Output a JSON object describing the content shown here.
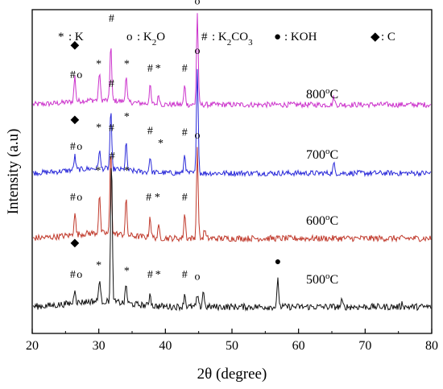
{
  "chart_data": {
    "type": "line",
    "xlabel": "2θ (degree)",
    "ylabel": "Intensity (a.u)",
    "xlim": [
      20,
      80
    ],
    "xticks": [
      "20",
      "30",
      "40",
      "50",
      "60",
      "70",
      "80"
    ],
    "grid": false,
    "legend_position": "top",
    "legend": [
      {
        "symbol": "*",
        "text": ": K"
      },
      {
        "symbol": "o",
        "text": ": K₂O"
      },
      {
        "symbol": "#",
        "text": ": K₂CO₃"
      },
      {
        "symbol": "●",
        "text": ": KOH"
      },
      {
        "symbol": "◆",
        "text": ": C"
      }
    ],
    "series": [
      {
        "name": "800°C",
        "label_main": "800",
        "label_sup": "o",
        "label_tail": "C",
        "color": "#cc33cc",
        "baseline": 0.0,
        "peaks": [
          [
            26.4,
            0.16
          ],
          [
            30.1,
            0.18
          ],
          [
            31.8,
            0.36
          ],
          [
            34.1,
            0.16
          ],
          [
            37.7,
            0.12
          ],
          [
            39.0,
            0.06
          ],
          [
            42.9,
            0.12
          ],
          [
            44.8,
            0.58
          ],
          [
            65.3,
            0.05
          ]
        ],
        "markers": [
          {
            "x": 26.4,
            "sym": "◆",
            "h": 0.38
          },
          {
            "x": 26.1,
            "sym": "#",
            "h": 0.19
          },
          {
            "x": 27.1,
            "sym": "o",
            "h": 0.19
          },
          {
            "x": 30.0,
            "sym": "*",
            "h": 0.26
          },
          {
            "x": 31.9,
            "sym": "#",
            "h": 0.55
          },
          {
            "x": 34.2,
            "sym": "*",
            "h": 0.26
          },
          {
            "x": 37.7,
            "sym": "#",
            "h": 0.23
          },
          {
            "x": 38.9,
            "sym": "*",
            "h": 0.23
          },
          {
            "x": 42.9,
            "sym": "#",
            "h": 0.23
          },
          {
            "x": 44.8,
            "sym": "o",
            "h": 0.66
          }
        ]
      },
      {
        "name": "700°C",
        "label_main": "700",
        "label_sup": "o",
        "label_tail": "C",
        "color": "#2a2ad9",
        "baseline": 0.0,
        "peaks": [
          [
            26.4,
            0.09
          ],
          [
            30.1,
            0.12
          ],
          [
            31.8,
            0.37
          ],
          [
            34.1,
            0.17
          ],
          [
            37.7,
            0.1
          ],
          [
            42.9,
            0.12
          ],
          [
            44.8,
            0.68
          ],
          [
            65.3,
            0.06
          ]
        ],
        "markers": [
          {
            "x": 26.4,
            "sym": "◆",
            "h": 0.34
          },
          {
            "x": 26.1,
            "sym": "#",
            "h": 0.17
          },
          {
            "x": 27.1,
            "sym": "o",
            "h": 0.17
          },
          {
            "x": 30.0,
            "sym": "*",
            "h": 0.29
          },
          {
            "x": 31.9,
            "sym": "#",
            "h": 0.57
          },
          {
            "x": 34.2,
            "sym": "*",
            "h": 0.36
          },
          {
            "x": 37.7,
            "sym": "#",
            "h": 0.27
          },
          {
            "x": 39.3,
            "sym": "*",
            "h": 0.19
          },
          {
            "x": 42.9,
            "sym": "#",
            "h": 0.26
          },
          {
            "x": 44.8,
            "sym": "o",
            "h": 0.78
          }
        ]
      },
      {
        "name": "600°C",
        "label_main": "600",
        "label_sup": "o",
        "label_tail": "C",
        "color": "#c0392b",
        "baseline": 0.0,
        "peaks": [
          [
            26.4,
            0.13
          ],
          [
            30.1,
            0.22
          ],
          [
            31.8,
            0.48
          ],
          [
            34.1,
            0.2
          ],
          [
            37.7,
            0.12
          ],
          [
            39.0,
            0.06
          ],
          [
            42.9,
            0.14
          ],
          [
            44.8,
            0.5
          ],
          [
            45.9,
            0.05
          ]
        ],
        "markers": [
          {
            "x": 26.1,
            "sym": "#",
            "h": 0.23
          },
          {
            "x": 27.1,
            "sym": "o",
            "h": 0.23
          },
          {
            "x": 29.9,
            "sym": "*",
            "h": 0.38
          },
          {
            "x": 31.9,
            "sym": "#",
            "h": 0.62
          },
          {
            "x": 34.2,
            "sym": "*",
            "h": 0.38
          },
          {
            "x": 37.5,
            "sym": "#",
            "h": 0.23
          },
          {
            "x": 38.8,
            "sym": "*",
            "h": 0.23
          },
          {
            "x": 42.9,
            "sym": "#",
            "h": 0.23
          },
          {
            "x": 44.8,
            "sym": "o",
            "h": 0.58
          }
        ]
      },
      {
        "name": "500°C",
        "label_main": "500",
        "label_sup": "o",
        "label_tail": "C",
        "color": "#111111",
        "baseline": 0.0,
        "peaks": [
          [
            26.4,
            0.08
          ],
          [
            30.1,
            0.12
          ],
          [
            31.9,
            0.75
          ],
          [
            34.1,
            0.1
          ],
          [
            37.7,
            0.07
          ],
          [
            42.9,
            0.07
          ],
          [
            44.8,
            0.06
          ],
          [
            45.7,
            0.09
          ],
          [
            56.9,
            0.14
          ],
          [
            66.5,
            0.03
          ],
          [
            75.6,
            0.02
          ]
        ],
        "markers": [
          {
            "x": 26.4,
            "sym": "◆",
            "h": 0.34
          },
          {
            "x": 26.1,
            "sym": "#",
            "h": 0.17
          },
          {
            "x": 27.1,
            "sym": "o",
            "h": 0.17
          },
          {
            "x": 30.0,
            "sym": "*",
            "h": 0.22
          },
          {
            "x": 32.0,
            "sym": "#",
            "h": 0.8
          },
          {
            "x": 34.2,
            "sym": "*",
            "h": 0.19
          },
          {
            "x": 37.7,
            "sym": "#",
            "h": 0.17
          },
          {
            "x": 38.9,
            "sym": "*",
            "h": 0.17
          },
          {
            "x": 42.9,
            "sym": "#",
            "h": 0.17
          },
          {
            "x": 44.8,
            "sym": "o",
            "h": 0.16
          },
          {
            "x": 56.9,
            "sym": "●",
            "h": 0.24
          }
        ]
      }
    ]
  }
}
